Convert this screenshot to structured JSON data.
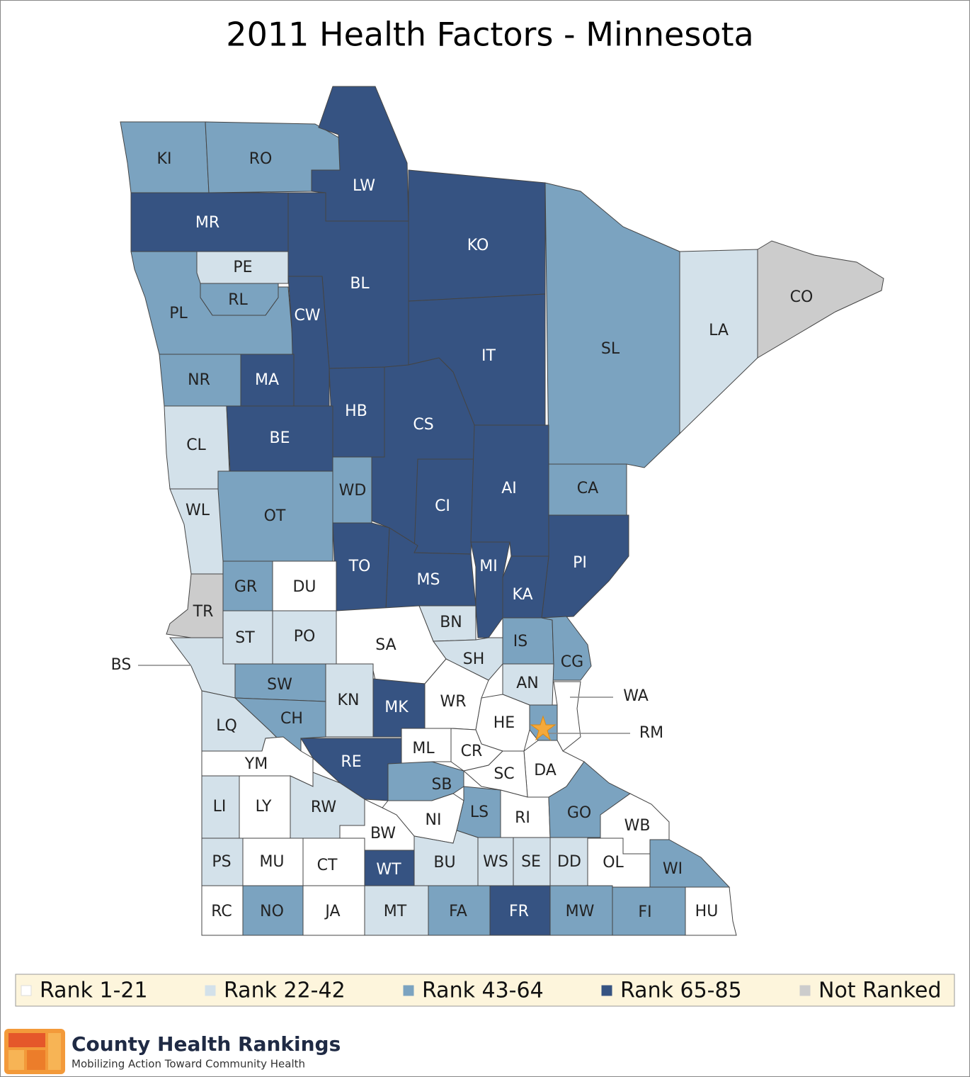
{
  "title": "2011 Health Factors - Minnesota",
  "legend": [
    {
      "label": "Rank 1-21",
      "color": "#ffffff"
    },
    {
      "label": "Rank 22-42",
      "color": "#d3e1ea"
    },
    {
      "label": "Rank 43-64",
      "color": "#7ba3c0"
    },
    {
      "label": "Rank 65-85",
      "color": "#365382"
    },
    {
      "label": "Not Ranked",
      "color": "#cccccc"
    }
  ],
  "counties": [
    {
      "code": "KI",
      "group": "Rank 43-64"
    },
    {
      "code": "RO",
      "group": "Rank 43-64"
    },
    {
      "code": "LW",
      "group": "Rank 65-85"
    },
    {
      "code": "MR",
      "group": "Rank 65-85"
    },
    {
      "code": "KO",
      "group": "Rank 65-85"
    },
    {
      "code": "LA",
      "group": "Rank 22-42"
    },
    {
      "code": "CO",
      "group": "Not Ranked"
    },
    {
      "code": "SL",
      "group": "Rank 43-64"
    },
    {
      "code": "PE",
      "group": "Rank 22-42"
    },
    {
      "code": "RL",
      "group": "Rank 43-64"
    },
    {
      "code": "PL",
      "group": "Rank 43-64"
    },
    {
      "code": "BL",
      "group": "Rank 65-85"
    },
    {
      "code": "CW",
      "group": "Rank 65-85"
    },
    {
      "code": "NR",
      "group": "Rank 43-64"
    },
    {
      "code": "MA",
      "group": "Rank 65-85"
    },
    {
      "code": "IT",
      "group": "Rank 65-85"
    },
    {
      "code": "HB",
      "group": "Rank 65-85"
    },
    {
      "code": "CS",
      "group": "Rank 65-85"
    },
    {
      "code": "CL",
      "group": "Rank 22-42"
    },
    {
      "code": "BE",
      "group": "Rank 65-85"
    },
    {
      "code": "WD",
      "group": "Rank 43-64"
    },
    {
      "code": "OT",
      "group": "Rank 43-64"
    },
    {
      "code": "WL",
      "group": "Rank 22-42"
    },
    {
      "code": "CI",
      "group": "Rank 65-85"
    },
    {
      "code": "AI",
      "group": "Rank 65-85"
    },
    {
      "code": "CA",
      "group": "Rank 43-64"
    },
    {
      "code": "PI",
      "group": "Rank 65-85"
    },
    {
      "code": "TO",
      "group": "Rank 65-85"
    },
    {
      "code": "MS",
      "group": "Rank 65-85"
    },
    {
      "code": "MI",
      "group": "Rank 65-85"
    },
    {
      "code": "KA",
      "group": "Rank 65-85"
    },
    {
      "code": "GR",
      "group": "Rank 43-64"
    },
    {
      "code": "DU",
      "group": "Rank 1-21"
    },
    {
      "code": "TR",
      "group": "Not Ranked"
    },
    {
      "code": "ST",
      "group": "Rank 22-42"
    },
    {
      "code": "PO",
      "group": "Rank 22-42"
    },
    {
      "code": "BN",
      "group": "Rank 22-42"
    },
    {
      "code": "SA",
      "group": "Rank 1-21"
    },
    {
      "code": "BS",
      "group": "Rank 22-42"
    },
    {
      "code": "SH",
      "group": "Rank 22-42"
    },
    {
      "code": "IS",
      "group": "Rank 43-64"
    },
    {
      "code": "CG",
      "group": "Rank 43-64"
    },
    {
      "code": "AN",
      "group": "Rank 22-42"
    },
    {
      "code": "WA",
      "group": "Rank 1-21"
    },
    {
      "code": "SW",
      "group": "Rank 43-64"
    },
    {
      "code": "KN",
      "group": "Rank 22-42"
    },
    {
      "code": "MK",
      "group": "Rank 65-85"
    },
    {
      "code": "WR",
      "group": "Rank 1-21"
    },
    {
      "code": "HE",
      "group": "Rank 1-21"
    },
    {
      "code": "RM",
      "group": "Rank 43-64"
    },
    {
      "code": "LQ",
      "group": "Rank 22-42"
    },
    {
      "code": "CH",
      "group": "Rank 43-64"
    },
    {
      "code": "ML",
      "group": "Rank 1-21"
    },
    {
      "code": "CR",
      "group": "Rank 1-21"
    },
    {
      "code": "DA",
      "group": "Rank 1-21"
    },
    {
      "code": "SC",
      "group": "Rank 1-21"
    },
    {
      "code": "YM",
      "group": "Rank 1-21"
    },
    {
      "code": "RE",
      "group": "Rank 65-85"
    },
    {
      "code": "SB",
      "group": "Rank 43-64"
    },
    {
      "code": "LI",
      "group": "Rank 22-42"
    },
    {
      "code": "LY",
      "group": "Rank 1-21"
    },
    {
      "code": "RW",
      "group": "Rank 22-42"
    },
    {
      "code": "BW",
      "group": "Rank 1-21"
    },
    {
      "code": "NI",
      "group": "Rank 1-21"
    },
    {
      "code": "LS",
      "group": "Rank 43-64"
    },
    {
      "code": "RI",
      "group": "Rank 1-21"
    },
    {
      "code": "GO",
      "group": "Rank 43-64"
    },
    {
      "code": "WB",
      "group": "Rank 1-21"
    },
    {
      "code": "PS",
      "group": "Rank 22-42"
    },
    {
      "code": "MU",
      "group": "Rank 1-21"
    },
    {
      "code": "CT",
      "group": "Rank 1-21"
    },
    {
      "code": "WT",
      "group": "Rank 65-85"
    },
    {
      "code": "BU",
      "group": "Rank 22-42"
    },
    {
      "code": "WS",
      "group": "Rank 22-42"
    },
    {
      "code": "SE",
      "group": "Rank 22-42"
    },
    {
      "code": "DD",
      "group": "Rank 22-42"
    },
    {
      "code": "OL",
      "group": "Rank 1-21"
    },
    {
      "code": "WI",
      "group": "Rank 43-64"
    },
    {
      "code": "RC",
      "group": "Rank 1-21"
    },
    {
      "code": "NO",
      "group": "Rank 43-64"
    },
    {
      "code": "JA",
      "group": "Rank 1-21"
    },
    {
      "code": "MT",
      "group": "Rank 22-42"
    },
    {
      "code": "FA",
      "group": "Rank 43-64"
    },
    {
      "code": "FR",
      "group": "Rank 65-85"
    },
    {
      "code": "MW",
      "group": "Rank 43-64"
    },
    {
      "code": "FI",
      "group": "Rank 43-64"
    },
    {
      "code": "HU",
      "group": "Rank 1-21"
    }
  ],
  "logo": {
    "name": "County Health Rankings",
    "tagline": "Mobilizing Action Toward Community Health"
  }
}
